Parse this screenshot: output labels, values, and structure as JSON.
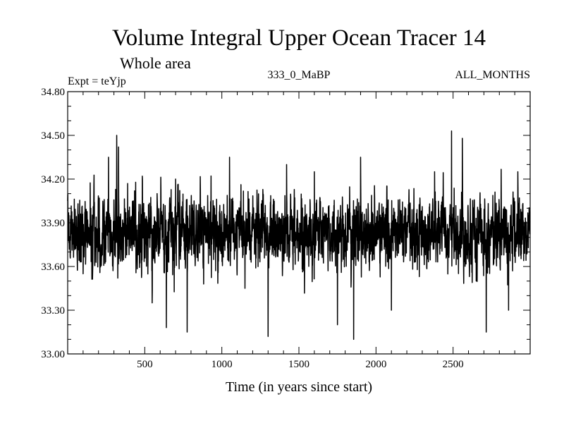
{
  "chart_data": {
    "type": "line",
    "title": "Volume Integral Upper Ocean Tracer 14",
    "subtitle": "Whole area",
    "experiment_label": "Expt = teYjp",
    "period_label": "333_0_MaBP",
    "months_label": "ALL_MONTHS",
    "xlabel": "Time (in years since start)",
    "ylabel": "",
    "xlim": [
      0,
      3000
    ],
    "ylim": [
      33.0,
      34.8
    ],
    "x_ticks": [
      500,
      1000,
      1500,
      2000,
      2500
    ],
    "y_ticks": [
      "33.00",
      "33.30",
      "33.60",
      "33.90",
      "34.20",
      "34.50",
      "34.80"
    ],
    "series": [
      {
        "name": "tracer 14",
        "color": "#000000",
        "n_points": 3000,
        "x_start": 0,
        "x_step": 1,
        "baseline": 33.83,
        "noise_sd": 0.2,
        "min": 33.1,
        "max": 34.53,
        "anchor_points": [
          {
            "x": 0,
            "y": 34.05
          },
          {
            "x": 100,
            "y": 33.55
          },
          {
            "x": 150,
            "y": 34.0
          },
          {
            "x": 265,
            "y": 34.35
          },
          {
            "x": 318,
            "y": 34.5
          },
          {
            "x": 330,
            "y": 34.42
          },
          {
            "x": 480,
            "y": 33.55
          },
          {
            "x": 548,
            "y": 33.35
          },
          {
            "x": 580,
            "y": 34.1
          },
          {
            "x": 640,
            "y": 33.18
          },
          {
            "x": 700,
            "y": 34.2
          },
          {
            "x": 775,
            "y": 33.15
          },
          {
            "x": 820,
            "y": 34.05
          },
          {
            "x": 1050,
            "y": 34.35
          },
          {
            "x": 1150,
            "y": 33.45
          },
          {
            "x": 1300,
            "y": 33.12
          },
          {
            "x": 1420,
            "y": 34.3
          },
          {
            "x": 1600,
            "y": 34.25
          },
          {
            "x": 1750,
            "y": 33.2
          },
          {
            "x": 1855,
            "y": 33.1
          },
          {
            "x": 1900,
            "y": 34.35
          },
          {
            "x": 2100,
            "y": 33.3
          },
          {
            "x": 2200,
            "y": 33.9
          },
          {
            "x": 2380,
            "y": 34.25
          },
          {
            "x": 2490,
            "y": 34.53
          },
          {
            "x": 2560,
            "y": 34.48
          },
          {
            "x": 2650,
            "y": 33.5
          },
          {
            "x": 2715,
            "y": 33.15
          },
          {
            "x": 2860,
            "y": 33.3
          },
          {
            "x": 2920,
            "y": 34.25
          },
          {
            "x": 3000,
            "y": 33.8
          }
        ]
      }
    ]
  }
}
